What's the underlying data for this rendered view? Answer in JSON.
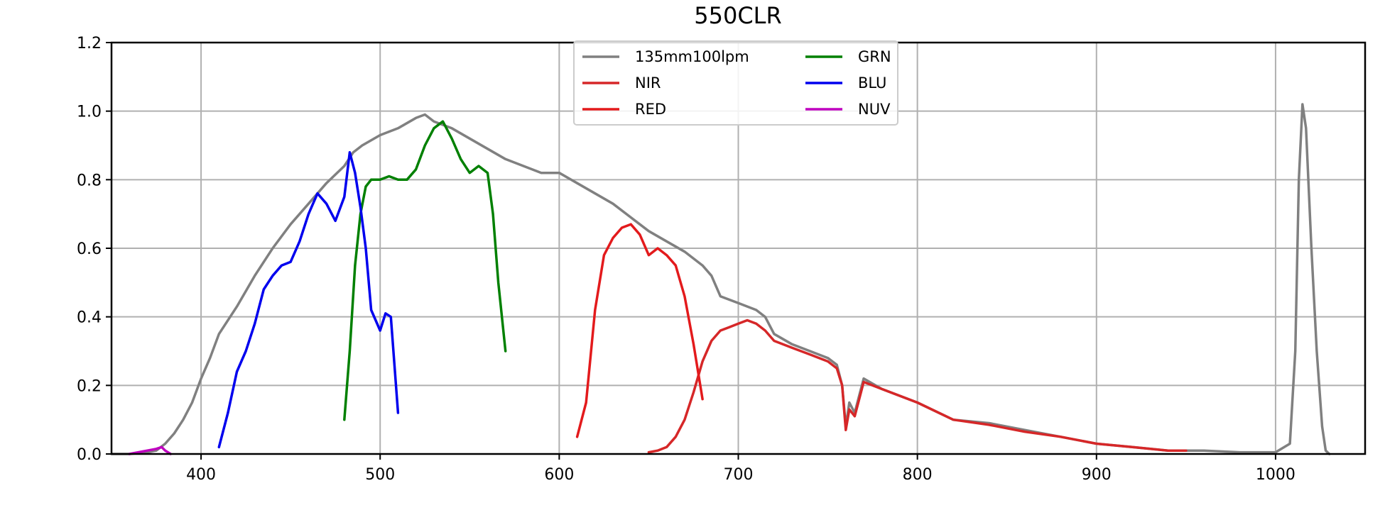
{
  "chart_data": {
    "type": "line",
    "title": "550CLR",
    "xlabel": "",
    "ylabel": "",
    "xlim": [
      350,
      1050
    ],
    "ylim": [
      0.0,
      1.2
    ],
    "x_ticks": [
      400,
      500,
      600,
      700,
      800,
      900,
      1000
    ],
    "y_ticks": [
      "0.0",
      "0.2",
      "0.4",
      "0.6",
      "0.8",
      "1.0",
      "1.2"
    ],
    "grid": true,
    "legend_position": "top-center",
    "legend_columns": 2,
    "series": [
      {
        "name": "135mm100lpm",
        "color": "#808080",
        "x": [
          350,
          360,
          370,
          375,
          380,
          385,
          390,
          395,
          400,
          405,
          410,
          420,
          430,
          440,
          450,
          460,
          470,
          480,
          485,
          490,
          500,
          510,
          520,
          525,
          530,
          540,
          550,
          560,
          570,
          580,
          590,
          600,
          610,
          620,
          630,
          640,
          650,
          660,
          670,
          680,
          685,
          690,
          700,
          710,
          715,
          720,
          730,
          740,
          750,
          755,
          758,
          760,
          762,
          765,
          770,
          780,
          800,
          820,
          840,
          860,
          880,
          900,
          920,
          940,
          950,
          960,
          980,
          1000,
          1008,
          1011,
          1013,
          1015,
          1017,
          1020,
          1023,
          1026,
          1028,
          1030
        ],
        "y": [
          0.0,
          0.0,
          0.005,
          0.01,
          0.03,
          0.06,
          0.1,
          0.15,
          0.22,
          0.28,
          0.35,
          0.43,
          0.52,
          0.6,
          0.67,
          0.73,
          0.79,
          0.84,
          0.88,
          0.9,
          0.93,
          0.95,
          0.98,
          0.99,
          0.97,
          0.95,
          0.92,
          0.89,
          0.86,
          0.84,
          0.82,
          0.82,
          0.79,
          0.76,
          0.73,
          0.69,
          0.65,
          0.62,
          0.59,
          0.55,
          0.52,
          0.46,
          0.44,
          0.42,
          0.4,
          0.35,
          0.32,
          0.3,
          0.28,
          0.26,
          0.2,
          0.08,
          0.15,
          0.12,
          0.22,
          0.19,
          0.15,
          0.1,
          0.09,
          0.07,
          0.05,
          0.03,
          0.02,
          0.01,
          0.01,
          0.01,
          0.005,
          0.005,
          0.03,
          0.3,
          0.8,
          1.02,
          0.95,
          0.6,
          0.3,
          0.08,
          0.01,
          0.0
        ]
      },
      {
        "name": "NIR",
        "color": "#d62728",
        "x": [
          650,
          655,
          660,
          665,
          670,
          675,
          680,
          685,
          690,
          695,
          700,
          705,
          710,
          715,
          720,
          730,
          740,
          750,
          755,
          758,
          760,
          762,
          765,
          770,
          780,
          800,
          820,
          840,
          860,
          880,
          900,
          920,
          940,
          950
        ],
        "y": [
          0.005,
          0.01,
          0.02,
          0.05,
          0.1,
          0.18,
          0.27,
          0.33,
          0.36,
          0.37,
          0.38,
          0.39,
          0.38,
          0.36,
          0.33,
          0.31,
          0.29,
          0.27,
          0.25,
          0.2,
          0.07,
          0.13,
          0.11,
          0.21,
          0.19,
          0.15,
          0.1,
          0.085,
          0.065,
          0.05,
          0.03,
          0.02,
          0.01,
          0.01
        ]
      },
      {
        "name": "RED",
        "color": "#e31a1c",
        "x": [
          610,
          615,
          620,
          625,
          630,
          635,
          640,
          645,
          650,
          655,
          660,
          665,
          670,
          675,
          680
        ],
        "y": [
          0.05,
          0.15,
          0.42,
          0.58,
          0.63,
          0.66,
          0.67,
          0.64,
          0.58,
          0.6,
          0.58,
          0.55,
          0.46,
          0.32,
          0.16
        ]
      },
      {
        "name": "GRN",
        "color": "#008000",
        "x": [
          480,
          483,
          486,
          489,
          492,
          495,
          500,
          505,
          510,
          515,
          520,
          525,
          530,
          535,
          540,
          545,
          550,
          555,
          560,
          563,
          566,
          570
        ],
        "y": [
          0.1,
          0.3,
          0.55,
          0.7,
          0.78,
          0.8,
          0.8,
          0.81,
          0.8,
          0.8,
          0.83,
          0.9,
          0.95,
          0.97,
          0.92,
          0.86,
          0.82,
          0.84,
          0.82,
          0.7,
          0.5,
          0.3
        ]
      },
      {
        "name": "BLU",
        "color": "#0000ee",
        "x": [
          410,
          415,
          420,
          425,
          430,
          435,
          440,
          445,
          450,
          455,
          460,
          465,
          470,
          475,
          480,
          483,
          486,
          489,
          492,
          495,
          500,
          503,
          506,
          510
        ],
        "y": [
          0.02,
          0.12,
          0.24,
          0.3,
          0.38,
          0.48,
          0.52,
          0.55,
          0.56,
          0.62,
          0.7,
          0.76,
          0.73,
          0.68,
          0.75,
          0.88,
          0.82,
          0.72,
          0.6,
          0.42,
          0.36,
          0.41,
          0.4,
          0.12
        ]
      },
      {
        "name": "NUV",
        "color": "#bf00bf",
        "x": [
          360,
          365,
          370,
          375,
          378,
          380,
          383
        ],
        "y": [
          0.0,
          0.005,
          0.01,
          0.015,
          0.02,
          0.01,
          0.0
        ]
      }
    ]
  }
}
